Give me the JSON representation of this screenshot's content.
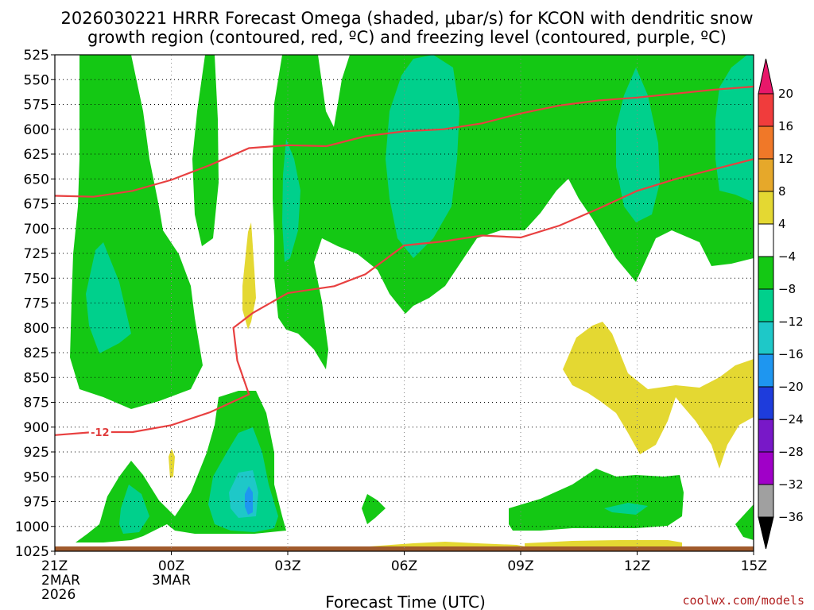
{
  "header": {
    "title_line1": "2026030221 HRRR Forecast Omega (shaded, μbar/s) for KCON with dendritic snow",
    "title_line2": "growth region (contoured, red, ºC) and freezing level (contoured, purple, ºC)"
  },
  "credit": "coolwx.com/models",
  "chart_data": {
    "type": "contour",
    "title": "2026030221 HRRR Forecast Omega (shaded, μbar/s) for KCON with dendritic snow growth region (contoured, red, ºC) and freezing level (contoured, purple, ºC)",
    "xlabel": "Forecast Time (UTC)",
    "ylabel": "",
    "x_ticks": [
      {
        "hour": 0,
        "label": "21Z",
        "sub1": "2MAR",
        "sub2": "2026"
      },
      {
        "hour": 3,
        "label": "00Z",
        "sub1": "3MAR",
        "sub2": ""
      },
      {
        "hour": 6,
        "label": "03Z",
        "sub1": "",
        "sub2": ""
      },
      {
        "hour": 9,
        "label": "06Z",
        "sub1": "",
        "sub2": ""
      },
      {
        "hour": 12,
        "label": "09Z",
        "sub1": "",
        "sub2": ""
      },
      {
        "hour": 15,
        "label": "12Z",
        "sub1": "",
        "sub2": ""
      },
      {
        "hour": 18,
        "label": "15Z",
        "sub1": "",
        "sub2": ""
      }
    ],
    "xlim": [
      0,
      18
    ],
    "y_ticks": [
      525,
      550,
      575,
      600,
      625,
      650,
      675,
      700,
      725,
      750,
      775,
      800,
      825,
      850,
      875,
      900,
      925,
      950,
      975,
      1000,
      1025
    ],
    "ylim": [
      525,
      1025
    ],
    "y_reversed": true,
    "grid": true,
    "colorbar": {
      "labels": [
        "20",
        "16",
        "12",
        "8",
        "4",
        "−4",
        "−8",
        "−12",
        "−16",
        "−20",
        "−24",
        "−28",
        "−32",
        "−36"
      ],
      "colors": [
        "#e8186a",
        "#f03c3c",
        "#f07828",
        "#e6a82a",
        "#e4d832",
        "#ffffff",
        "#14c814",
        "#00d08c",
        "#1ec8c8",
        "#1e96f0",
        "#1e3cdc",
        "#7818c8",
        "#a000c8",
        "#a0a0a0",
        "#000000"
      ]
    },
    "series": [
      {
        "name": "-12",
        "color": "#e84040",
        "points": [
          [
            0,
            908
          ],
          [
            1,
            905
          ],
          [
            2,
            905
          ],
          [
            3,
            898
          ],
          [
            4,
            885
          ],
          [
            5,
            867
          ],
          [
            4.7,
            833
          ],
          [
            4.6,
            800
          ],
          [
            5.1,
            785
          ],
          [
            6,
            765
          ],
          [
            7.2,
            758
          ],
          [
            8,
            746
          ],
          [
            9,
            717
          ],
          [
            10,
            713
          ],
          [
            11,
            707
          ],
          [
            12,
            709
          ],
          [
            13,
            697
          ],
          [
            14,
            680
          ],
          [
            15,
            662
          ],
          [
            16,
            650
          ],
          [
            17,
            640
          ],
          [
            18,
            630
          ]
        ],
        "label_at": [
          1,
          905
        ]
      },
      {
        "name": "",
        "color": "#e84040",
        "points": [
          [
            0,
            667
          ],
          [
            1,
            668
          ],
          [
            2,
            662
          ],
          [
            3,
            651
          ],
          [
            4,
            636
          ],
          [
            5,
            619
          ],
          [
            6,
            616
          ],
          [
            7,
            617
          ],
          [
            8,
            607
          ],
          [
            9,
            602
          ],
          [
            10,
            600
          ],
          [
            11,
            594
          ],
          [
            12,
            584
          ],
          [
            13,
            576
          ],
          [
            14,
            571
          ],
          [
            15,
            568
          ],
          [
            16,
            564
          ],
          [
            17,
            560
          ],
          [
            18,
            557
          ]
        ]
      }
    ]
  }
}
